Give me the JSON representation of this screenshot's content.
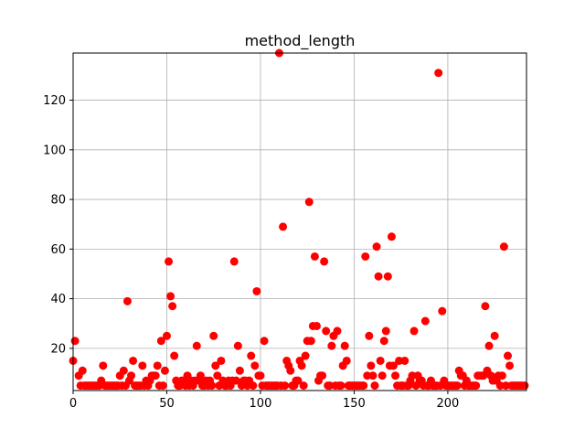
{
  "chart_data": {
    "type": "scatter",
    "title": "method_length",
    "xlabel": "",
    "ylabel": "",
    "xlim": [
      0,
      242
    ],
    "ylim": [
      3,
      139
    ],
    "x_ticks": [
      0,
      50,
      100,
      150,
      200
    ],
    "y_ticks": [
      20,
      40,
      60,
      80,
      100,
      120
    ],
    "grid": true,
    "marker_color": "#ff0000",
    "series": [
      {
        "points": [
          [
            0,
            15
          ],
          [
            1,
            23
          ],
          [
            3,
            9
          ],
          [
            4,
            5
          ],
          [
            5,
            11
          ],
          [
            6,
            5
          ],
          [
            7,
            5
          ],
          [
            8,
            5
          ],
          [
            9,
            5
          ],
          [
            10,
            5
          ],
          [
            11,
            5
          ],
          [
            12,
            5
          ],
          [
            13,
            5
          ],
          [
            14,
            5
          ],
          [
            15,
            7
          ],
          [
            16,
            13
          ],
          [
            17,
            5
          ],
          [
            18,
            5
          ],
          [
            19,
            5
          ],
          [
            20,
            5
          ],
          [
            21,
            5
          ],
          [
            22,
            5
          ],
          [
            23,
            5
          ],
          [
            24,
            5
          ],
          [
            25,
            9
          ],
          [
            26,
            5
          ],
          [
            27,
            11
          ],
          [
            28,
            5
          ],
          [
            29,
            39
          ],
          [
            30,
            7
          ],
          [
            31,
            9
          ],
          [
            32,
            15
          ],
          [
            33,
            5
          ],
          [
            34,
            5
          ],
          [
            35,
            5
          ],
          [
            36,
            5
          ],
          [
            37,
            13
          ],
          [
            38,
            5
          ],
          [
            39,
            7
          ],
          [
            40,
            5
          ],
          [
            41,
            7
          ],
          [
            42,
            9
          ],
          [
            43,
            9
          ],
          [
            44,
            9
          ],
          [
            45,
            13
          ],
          [
            46,
            5
          ],
          [
            47,
            23
          ],
          [
            48,
            5
          ],
          [
            49,
            11
          ],
          [
            50,
            25
          ],
          [
            51,
            55
          ],
          [
            52,
            41
          ],
          [
            53,
            37
          ],
          [
            54,
            17
          ],
          [
            55,
            7
          ],
          [
            56,
            5
          ],
          [
            57,
            5
          ],
          [
            58,
            7
          ],
          [
            59,
            7
          ],
          [
            60,
            5
          ],
          [
            61,
            9
          ],
          [
            62,
            5
          ],
          [
            63,
            7
          ],
          [
            64,
            5
          ],
          [
            65,
            7
          ],
          [
            66,
            21
          ],
          [
            67,
            7
          ],
          [
            68,
            9
          ],
          [
            69,
            5
          ],
          [
            70,
            5
          ],
          [
            71,
            7
          ],
          [
            72,
            5
          ],
          [
            73,
            7
          ],
          [
            74,
            5
          ],
          [
            75,
            25
          ],
          [
            76,
            13
          ],
          [
            77,
            9
          ],
          [
            78,
            5
          ],
          [
            79,
            15
          ],
          [
            80,
            7
          ],
          [
            81,
            5
          ],
          [
            82,
            5
          ],
          [
            83,
            7
          ],
          [
            84,
            5
          ],
          [
            85,
            7
          ],
          [
            86,
            55
          ],
          [
            87,
            7
          ],
          [
            88,
            21
          ],
          [
            89,
            11
          ],
          [
            90,
            5
          ],
          [
            91,
            7
          ],
          [
            92,
            7
          ],
          [
            93,
            5
          ],
          [
            94,
            7
          ],
          [
            95,
            17
          ],
          [
            96,
            5
          ],
          [
            97,
            13
          ],
          [
            98,
            43
          ],
          [
            99,
            9
          ],
          [
            100,
            9
          ],
          [
            101,
            5
          ],
          [
            102,
            23
          ],
          [
            103,
            5
          ],
          [
            104,
            5
          ],
          [
            105,
            5
          ],
          [
            106,
            5
          ],
          [
            107,
            5
          ],
          [
            108,
            5
          ],
          [
            109,
            5
          ],
          [
            110,
            139
          ],
          [
            111,
            5
          ],
          [
            112,
            69
          ],
          [
            113,
            5
          ],
          [
            114,
            15
          ],
          [
            115,
            13
          ],
          [
            116,
            11
          ],
          [
            117,
            5
          ],
          [
            118,
            5
          ],
          [
            119,
            7
          ],
          [
            120,
            7
          ],
          [
            121,
            15
          ],
          [
            122,
            13
          ],
          [
            123,
            5
          ],
          [
            124,
            17
          ],
          [
            125,
            23
          ],
          [
            126,
            79
          ],
          [
            127,
            23
          ],
          [
            128,
            29
          ],
          [
            129,
            57
          ],
          [
            130,
            29
          ],
          [
            131,
            7
          ],
          [
            132,
            9
          ],
          [
            133,
            9
          ],
          [
            134,
            55
          ],
          [
            135,
            27
          ],
          [
            136,
            5
          ],
          [
            137,
            5
          ],
          [
            138,
            21
          ],
          [
            139,
            25
          ],
          [
            140,
            5
          ],
          [
            141,
            27
          ],
          [
            142,
            5
          ],
          [
            143,
            5
          ],
          [
            144,
            13
          ],
          [
            145,
            21
          ],
          [
            146,
            15
          ],
          [
            147,
            5
          ],
          [
            148,
            5
          ],
          [
            149,
            5
          ],
          [
            150,
            5
          ],
          [
            151,
            5
          ],
          [
            152,
            5
          ],
          [
            153,
            5
          ],
          [
            154,
            5
          ],
          [
            155,
            5
          ],
          [
            156,
            57
          ],
          [
            157,
            9
          ],
          [
            158,
            25
          ],
          [
            159,
            13
          ],
          [
            160,
            9
          ],
          [
            161,
            5
          ],
          [
            162,
            61
          ],
          [
            163,
            49
          ],
          [
            164,
            15
          ],
          [
            165,
            9
          ],
          [
            166,
            23
          ],
          [
            167,
            27
          ],
          [
            168,
            49
          ],
          [
            169,
            13
          ],
          [
            170,
            65
          ],
          [
            171,
            13
          ],
          [
            172,
            9
          ],
          [
            173,
            5
          ],
          [
            174,
            15
          ],
          [
            175,
            5
          ],
          [
            176,
            5
          ],
          [
            177,
            15
          ],
          [
            178,
            5
          ],
          [
            179,
            5
          ],
          [
            180,
            7
          ],
          [
            181,
            9
          ],
          [
            182,
            27
          ],
          [
            183,
            5
          ],
          [
            184,
            9
          ],
          [
            185,
            7
          ],
          [
            186,
            7
          ],
          [
            187,
            5
          ],
          [
            188,
            31
          ],
          [
            189,
            5
          ],
          [
            190,
            5
          ],
          [
            191,
            7
          ],
          [
            192,
            5
          ],
          [
            193,
            5
          ],
          [
            194,
            5
          ],
          [
            195,
            131
          ],
          [
            196,
            5
          ],
          [
            197,
            35
          ],
          [
            198,
            7
          ],
          [
            199,
            5
          ],
          [
            200,
            5
          ],
          [
            201,
            5
          ],
          [
            202,
            5
          ],
          [
            203,
            5
          ],
          [
            204,
            5
          ],
          [
            205,
            5
          ],
          [
            206,
            11
          ],
          [
            207,
            9
          ],
          [
            208,
            9
          ],
          [
            209,
            5
          ],
          [
            210,
            7
          ],
          [
            211,
            5
          ],
          [
            212,
            5
          ],
          [
            213,
            5
          ],
          [
            214,
            5
          ],
          [
            215,
            5
          ],
          [
            216,
            9
          ],
          [
            217,
            9
          ],
          [
            218,
            9
          ],
          [
            219,
            9
          ],
          [
            220,
            37
          ],
          [
            221,
            11
          ],
          [
            222,
            21
          ],
          [
            223,
            9
          ],
          [
            224,
            7
          ],
          [
            225,
            25
          ],
          [
            226,
            7
          ],
          [
            227,
            9
          ],
          [
            228,
            5
          ],
          [
            229,
            9
          ],
          [
            230,
            61
          ],
          [
            231,
            5
          ],
          [
            232,
            17
          ],
          [
            233,
            13
          ],
          [
            234,
            5
          ],
          [
            235,
            5
          ],
          [
            236,
            5
          ],
          [
            237,
            5
          ],
          [
            238,
            5
          ],
          [
            239,
            5
          ],
          [
            240,
            5
          ],
          [
            241,
            5
          ]
        ]
      }
    ]
  }
}
